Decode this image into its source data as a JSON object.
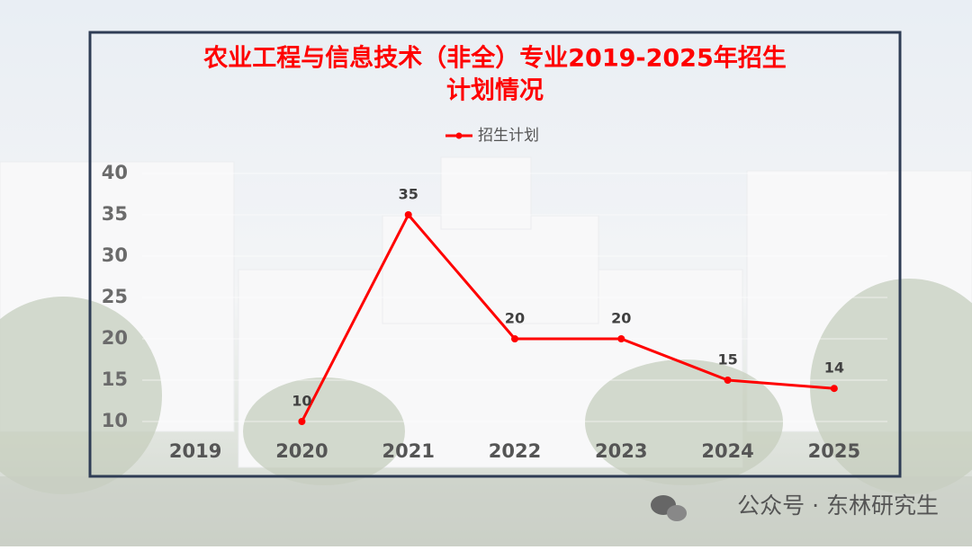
{
  "chart_data": {
    "type": "line",
    "title": [
      "农业工程与信息技术（非全）专业2019-2025年招生",
      "计划情况"
    ],
    "categories": [
      "2019",
      "2020",
      "2021",
      "2022",
      "2023",
      "2024",
      "2025"
    ],
    "series": [
      {
        "name": "招生计划",
        "color": "#ff0000",
        "values": [
          null,
          10,
          35,
          20,
          20,
          15,
          14
        ]
      }
    ],
    "ylim": [
      10,
      40
    ],
    "yticks": [
      10,
      15,
      20,
      25,
      30,
      35,
      40
    ],
    "grid": true,
    "legend": "top"
  },
  "watermark": "公众号 · 东林研究生"
}
